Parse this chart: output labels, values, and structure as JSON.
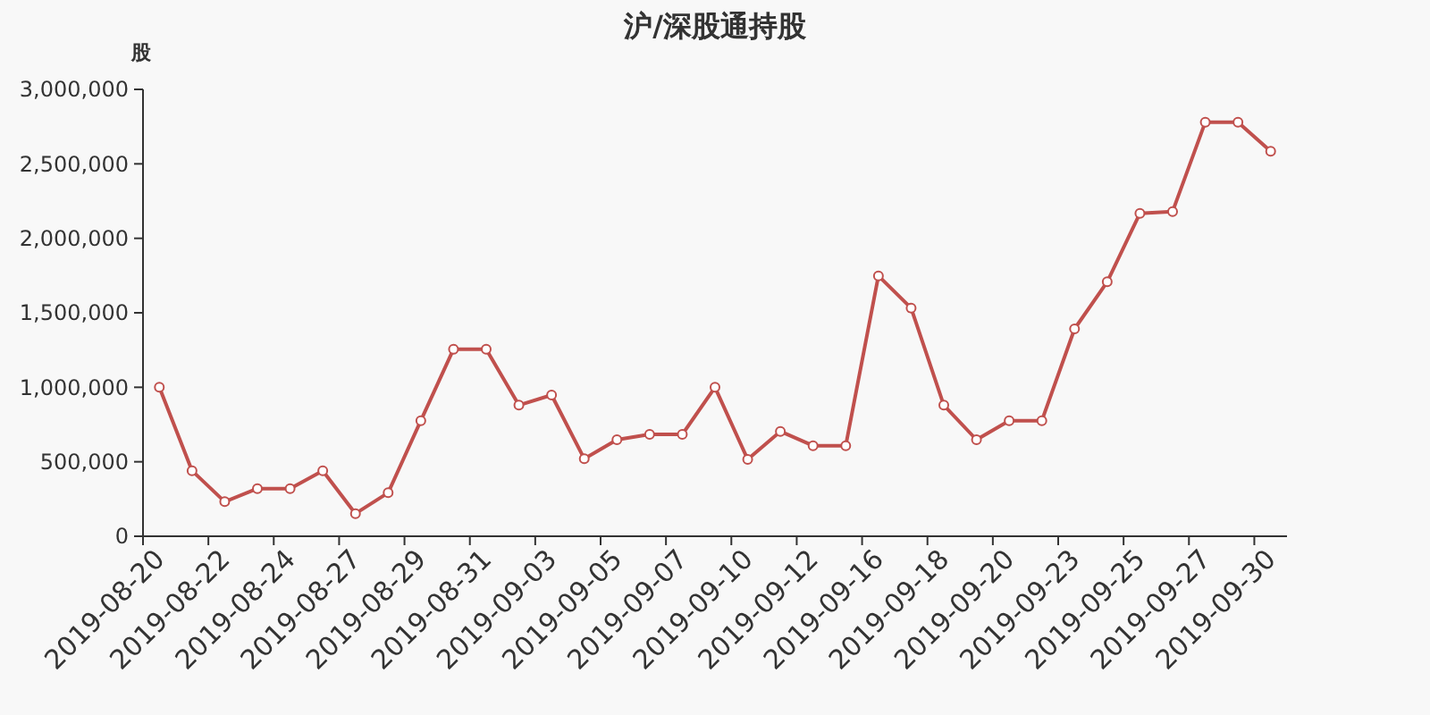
{
  "chart_data": {
    "type": "line",
    "title": "沪/深股通持股",
    "ylabel": "股",
    "categories": [
      "2019-08-20",
      null,
      "2019-08-22",
      null,
      "2019-08-24",
      null,
      "2019-08-27",
      null,
      "2019-08-29",
      null,
      "2019-08-31",
      null,
      "2019-09-03",
      null,
      "2019-09-05",
      null,
      "2019-09-07",
      null,
      "2019-09-10",
      null,
      "2019-09-12",
      null,
      "2019-09-16",
      null,
      "2019-09-18",
      null,
      "2019-09-20",
      null,
      "2019-09-23",
      null,
      "2019-09-25",
      null,
      "2019-09-27",
      null,
      "2019-09-30"
    ],
    "series": [
      {
        "color": "#c0504d",
        "values": [
          1000000,
          440000,
          232000,
          320000,
          320000,
          440000,
          152000,
          292000,
          776000,
          1256000,
          1256000,
          880000,
          948000,
          520000,
          648000,
          684000,
          684000,
          1000000,
          516000,
          704000,
          608000,
          608000,
          1748000,
          1532000,
          880000,
          648000,
          776000,
          776000,
          1392000,
          1708000,
          2168000,
          2180000,
          2780000,
          2780000,
          2584000
        ]
      }
    ],
    "ylim": [
      0,
      3000000
    ],
    "yticks": [
      {
        "value": 0,
        "label": "0"
      },
      {
        "value": 500000,
        "label": "500,000"
      },
      {
        "value": 1000000,
        "label": "1,000,000"
      },
      {
        "value": 1500000,
        "label": "1,500,000"
      },
      {
        "value": 2000000,
        "label": "2,000,000"
      },
      {
        "value": 2500000,
        "label": "2,500,000"
      },
      {
        "value": 3000000,
        "label": "3,000,000"
      }
    ],
    "marker": "circle",
    "line_style": "solid"
  }
}
